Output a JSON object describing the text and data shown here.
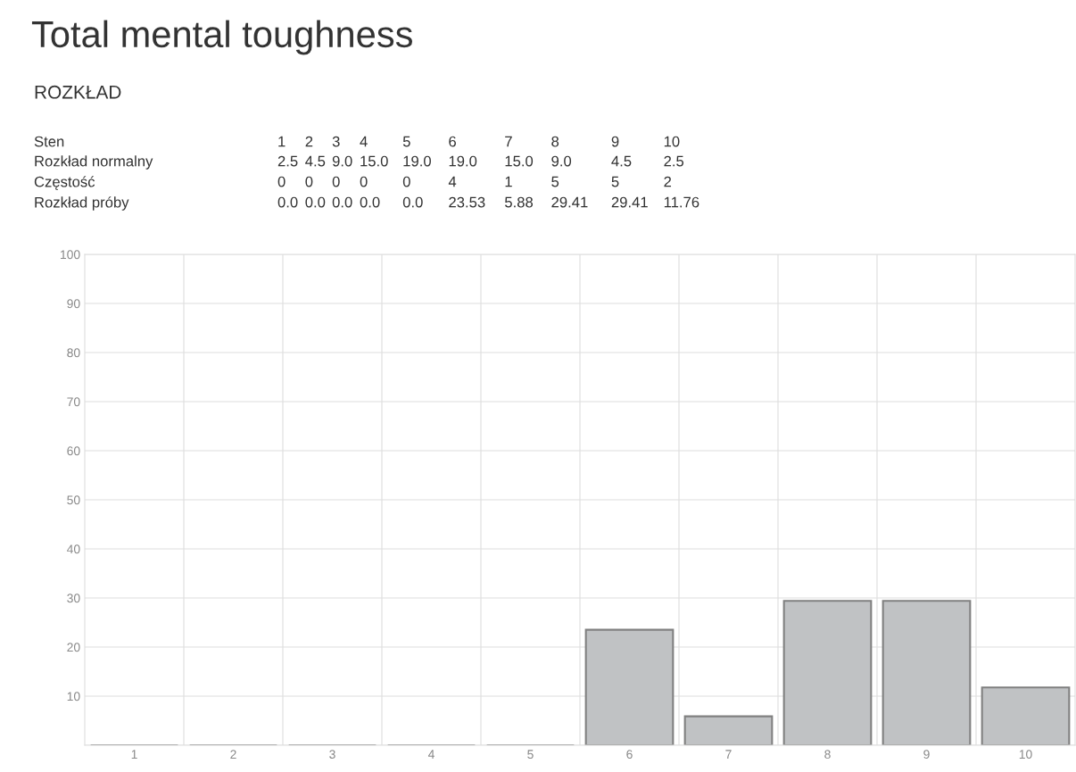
{
  "chart_data": {
    "type": "bar",
    "title": "Total mental toughness",
    "subtitle": "ROZKŁAD",
    "categories": [
      "1",
      "2",
      "3",
      "4",
      "5",
      "6",
      "7",
      "8",
      "9",
      "10"
    ],
    "series": [
      {
        "name": "Rozkład próby",
        "color": "#c0c2c4",
        "values": [
          0.0,
          0.0,
          0.0,
          0.0,
          0.0,
          23.53,
          5.88,
          29.41,
          29.41,
          11.76
        ]
      }
    ],
    "annotations": [
      "Sten",
      "Rozkład normalny",
      "2.5",
      "4.5",
      "9.0",
      "15.0",
      "19.0",
      "19.0",
      "15.0",
      "9.0",
      "4.5",
      "2.5",
      "Częstość",
      "0",
      "0",
      "0",
      "0",
      "0",
      "4",
      "1",
      "5",
      "5",
      "2",
      "0.0",
      "0.0",
      "0.0",
      "0.0",
      "0.0",
      "23.53",
      "5.88",
      "29.41",
      "29.41",
      "11.76"
    ],
    "ylim": [
      0,
      100
    ],
    "yticks": [
      {
        "value": 0,
        "label": null
      },
      10,
      20,
      30,
      40,
      50,
      60,
      70,
      80,
      90,
      100
    ],
    "grid": true,
    "legend": false
  }
}
